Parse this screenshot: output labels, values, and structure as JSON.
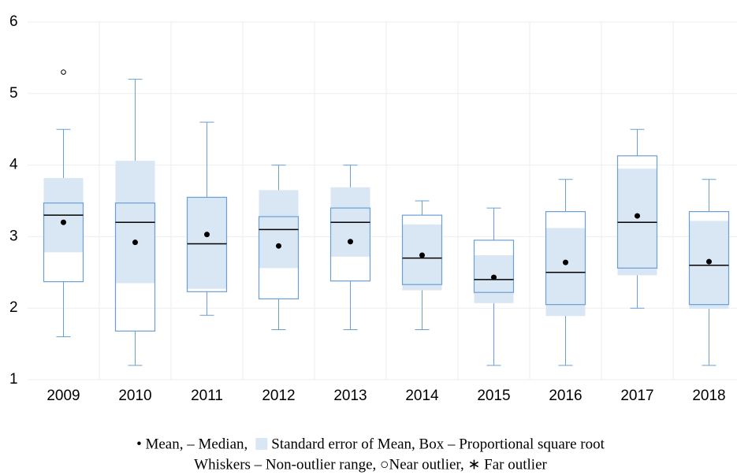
{
  "chart_data": {
    "type": "box",
    "categories": [
      "2009",
      "2010",
      "2011",
      "2012",
      "2013",
      "2014",
      "2015",
      "2016",
      "2017",
      "2018"
    ],
    "whisker_low": [
      1.6,
      1.2,
      1.9,
      1.7,
      1.7,
      1.7,
      1.2,
      1.2,
      2.0,
      1.2
    ],
    "q1": [
      2.37,
      1.68,
      2.23,
      2.13,
      2.38,
      2.33,
      2.22,
      2.05,
      2.56,
      2.05
    ],
    "median": [
      3.3,
      3.2,
      2.9,
      3.1,
      3.2,
      2.7,
      2.4,
      2.5,
      3.2,
      2.6
    ],
    "q3": [
      3.47,
      3.47,
      3.55,
      3.28,
      3.4,
      3.3,
      2.95,
      3.35,
      4.13,
      3.35
    ],
    "whisker_high": [
      4.5,
      5.2,
      4.6,
      4.0,
      4.0,
      3.5,
      3.4,
      3.8,
      4.5,
      3.8
    ],
    "mean": [
      3.2,
      2.92,
      3.03,
      2.87,
      2.93,
      2.74,
      2.43,
      2.64,
      3.29,
      2.65
    ],
    "se_low": [
      2.78,
      2.35,
      2.27,
      2.56,
      2.72,
      2.25,
      2.07,
      1.89,
      2.46,
      1.99
    ],
    "se_high": [
      3.82,
      4.06,
      3.55,
      3.65,
      3.69,
      3.17,
      2.74,
      3.12,
      3.95,
      3.22
    ],
    "near_outliers": [
      [
        5.3
      ],
      [],
      [],
      [],
      [],
      [],
      [],
      [],
      [],
      []
    ],
    "ylim": [
      1,
      6
    ],
    "yticks": [
      1,
      2,
      3,
      4,
      5,
      6
    ],
    "grid": true,
    "box_color": "#6a9fd4",
    "se_color": "#d9e6f4",
    "mean_color": "#000000",
    "median_color": "#000000",
    "legend": [
      "• Mean, – Median,",
      "Standard error of Mean, Box – Proportional square root",
      "Whiskers – Non-outlier range, ○Near outlier, ∗ Far outlier"
    ]
  }
}
